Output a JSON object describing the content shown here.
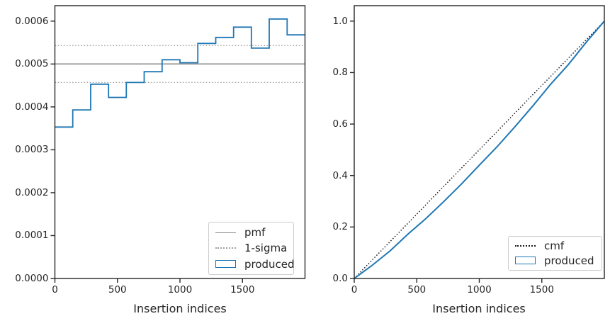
{
  "figure": {
    "background": "#ffffff",
    "text_color": "#262626",
    "axes_edge_color": "#262626"
  },
  "chart_data": [
    {
      "type": "bar",
      "subtype": "step-histogram-pmf",
      "title": "",
      "xlabel": "Insertion indices",
      "ylabel": "",
      "xlim": [
        0,
        2000
      ],
      "ylim": [
        0,
        0.000636
      ],
      "grid": false,
      "xticks": {
        "values": [
          0,
          500,
          1000,
          1500
        ],
        "labels": [
          "0",
          "500",
          "1000",
          "1500"
        ]
      },
      "yticks": {
        "values": [
          0,
          0.0001,
          0.0002,
          0.0003,
          0.0004,
          0.0005,
          0.0006
        ],
        "labels": [
          "0.0000",
          "0.0001",
          "0.0002",
          "0.0003",
          "0.0004",
          "0.0005",
          "0.0006"
        ]
      },
      "series": [
        {
          "name": "pmf",
          "kind": "hline",
          "style": "solid",
          "color": "#8a8a8a",
          "width": 1.5,
          "y": 0.0005
        },
        {
          "name": "1-sigma-upper",
          "kind": "hline",
          "style": "dotted",
          "color": "#9e9e9e",
          "width": 1.3,
          "y": 0.000543
        },
        {
          "name": "1-sigma-lower",
          "kind": "hline",
          "style": "dotted",
          "color": "#9e9e9e",
          "width": 1.3,
          "y": 0.000457
        },
        {
          "name": "produced",
          "kind": "step",
          "style": "solid",
          "color": "#1f77b4",
          "width": 1.8,
          "bin_edges": [
            0,
            143,
            286,
            429,
            571,
            714,
            857,
            1000,
            1143,
            1286,
            1429,
            1571,
            1714,
            1857,
            2000
          ],
          "values": [
            0.000353,
            0.000393,
            0.000453,
            0.000422,
            0.000457,
            0.000482,
            0.00051,
            0.000503,
            0.000548,
            0.000562,
            0.000586,
            0.000537,
            0.000605,
            0.000568
          ]
        }
      ],
      "legend": {
        "position": "lower right",
        "entries": [
          {
            "label": "pmf",
            "sample": "line-solid",
            "color": "#8a8a8a"
          },
          {
            "label": "1-sigma",
            "sample": "line-dotted",
            "color": "#9e9e9e"
          },
          {
            "label": "produced",
            "sample": "rect",
            "color": "#1f77b4"
          }
        ]
      }
    },
    {
      "type": "line",
      "subtype": "cumulative",
      "title": "",
      "xlabel": "Insertion indices",
      "ylabel": "",
      "xlim": [
        0,
        2000
      ],
      "ylim": [
        0,
        1.06
      ],
      "grid": false,
      "xticks": {
        "values": [
          0,
          500,
          1000,
          1500
        ],
        "labels": [
          "0",
          "500",
          "1000",
          "1500"
        ]
      },
      "yticks": {
        "values": [
          0,
          0.2,
          0.4,
          0.6,
          0.8,
          1.0
        ],
        "labels": [
          "0.0",
          "0.2",
          "0.4",
          "0.6",
          "0.8",
          "1.0"
        ]
      },
      "series": [
        {
          "name": "cmf",
          "kind": "line",
          "style": "dotted",
          "color": "#1a1a1a",
          "width": 1.5,
          "x": [
            0,
            2000
          ],
          "y": [
            0,
            1.0
          ]
        },
        {
          "name": "produced",
          "kind": "line",
          "style": "solid",
          "color": "#1f77b4",
          "width": 2,
          "x": [
            0,
            143,
            286,
            429,
            571,
            714,
            857,
            1000,
            1143,
            1286,
            1429,
            1571,
            1714,
            1857,
            2000
          ],
          "y": [
            0,
            0.051,
            0.107,
            0.172,
            0.232,
            0.298,
            0.367,
            0.44,
            0.512,
            0.59,
            0.671,
            0.755,
            0.832,
            0.919,
            1.0
          ]
        }
      ],
      "legend": {
        "position": "lower right",
        "entries": [
          {
            "label": "cmf",
            "sample": "line-dotted-dark",
            "color": "#1a1a1a"
          },
          {
            "label": "produced",
            "sample": "rect",
            "color": "#1f77b4"
          }
        ]
      }
    }
  ]
}
